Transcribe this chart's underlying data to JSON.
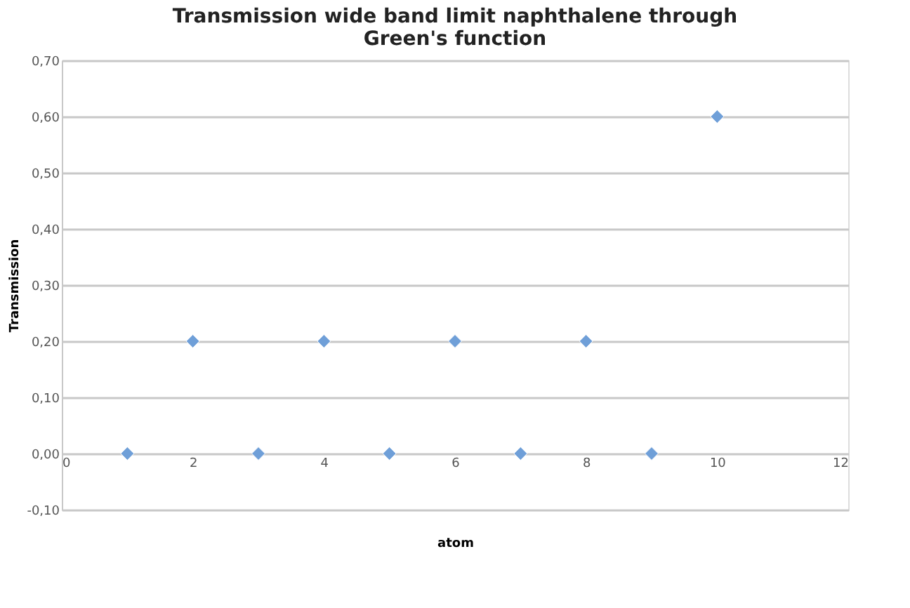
{
  "chart_data": {
    "type": "scatter",
    "title": "Transmission wide band limit naphthalene through Green's function",
    "xlabel": "atom",
    "ylabel": "Transmission",
    "x": [
      1,
      2,
      3,
      4,
      5,
      6,
      7,
      8,
      9,
      10
    ],
    "series": [
      {
        "color": "#6f9fd8",
        "values": [
          0,
          0.2,
          0,
          0.2,
          0,
          0.2,
          0,
          0.2,
          0,
          0.6
        ]
      }
    ],
    "xlim": [
      0,
      12
    ],
    "xticks": [
      0,
      2,
      4,
      6,
      8,
      10,
      12
    ],
    "ylim": [
      -0.1,
      0.7
    ],
    "yticks": [
      {
        "value": -0.1,
        "label": "-0,10"
      },
      {
        "value": 0,
        "label": "0,00"
      },
      {
        "value": 0.1,
        "label": "0,10"
      },
      {
        "value": 0.2,
        "label": "0,20"
      },
      {
        "value": 0.3,
        "label": "0,30"
      },
      {
        "value": 0.4,
        "label": "0,40"
      },
      {
        "value": 0.5,
        "label": "0,50"
      },
      {
        "value": 0.6,
        "label": "0,60"
      },
      {
        "value": 0.7,
        "label": "0,70"
      }
    ],
    "grid": "y",
    "marker": "diamond"
  }
}
